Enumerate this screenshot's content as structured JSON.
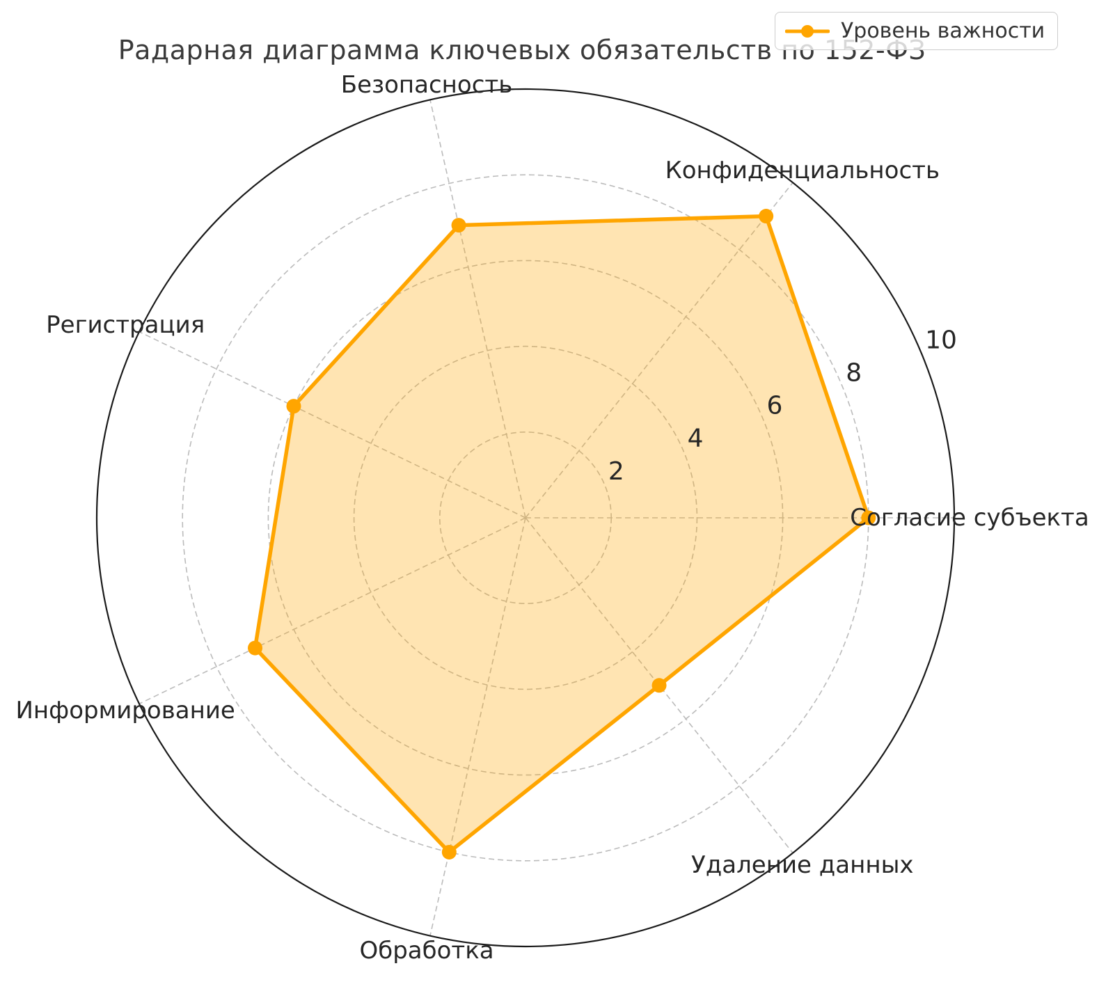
{
  "legend": {
    "position": "upper right"
  },
  "style": {
    "series_color": "#FFA500",
    "fill_color": "rgba(255,165,0,0.3)",
    "grid_color": "#bbbbbb",
    "spine_color": "#1a1a1a",
    "tick_text_color": "#262626",
    "category_text_color": "#262626",
    "title_color": "#3a3a3a"
  },
  "chart_data": {
    "type": "radar",
    "title": "Радарная диаграмма ключевых обязательств по 152-ФЗ",
    "categories": [
      "Согласие субъекта",
      "Конфиденциальность",
      "Безопасность",
      "Регистрация",
      "Информирование",
      "Обработка",
      "Удаление данных"
    ],
    "series": [
      {
        "name": "Уровень важности",
        "values": [
          8,
          9,
          7,
          6,
          7,
          8,
          5
        ]
      }
    ],
    "r_ticks": [
      2,
      4,
      6,
      8,
      10
    ],
    "r_range": [
      0,
      10
    ],
    "start_angle_deg": 0,
    "direction": "counterclockwise",
    "grid": true,
    "grid_style": "dashed",
    "legend_position": "upper right"
  }
}
